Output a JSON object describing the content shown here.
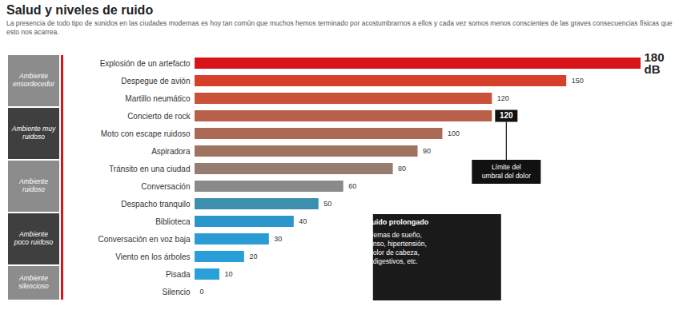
{
  "chart_data": {
    "type": "bar",
    "orientation": "horizontal",
    "title": "Salud y niveles de ruido",
    "subtitle": "La presencia de todo tipo de sonidos en las ciudades modernas es hoy tan común que muchos hemos terminado por acostumbrarnos a ellos y cada vez somos menos conscientes de las graves consecuencias físicas que esto nos acarrea.",
    "categories": [
      "Explosión de un artefacto",
      "Despegue de avión",
      "Martillo neumático",
      "Concierto de rock",
      "Moto con escape ruidoso",
      "Aspiradora",
      "Tránsito en una ciudad",
      "Conversación",
      "Despacho tranquilo",
      "Biblioteca",
      "Conversación en voz baja",
      "Viento en los árboles",
      "Pisada",
      "Silencio"
    ],
    "values": [
      180,
      150,
      120,
      120,
      100,
      90,
      80,
      60,
      50,
      40,
      30,
      20,
      10,
      0
    ],
    "value_labels": [
      "180 dB",
      "150",
      "120",
      "120",
      "100",
      "90",
      "80",
      "60",
      "50",
      "40",
      "30",
      "20",
      "10",
      "0"
    ],
    "colors": [
      "#d7141a",
      "#d6402b",
      "#c95238",
      "#b8604a",
      "#ab6a56",
      "#a07260",
      "#957b70",
      "#8a8a8a",
      "#3d8fb0",
      "#2b96c9",
      "#2a9bd3",
      "#2a9ed8",
      "#2aa0db",
      "#2aa0db"
    ],
    "xlim": [
      0,
      180
    ],
    "tick_labels": "y",
    "data_labels": true,
    "grid": false,
    "groups": [
      {
        "name": "Ambiente ensordecedor",
        "categories": [
          "Explosión de un artefacto",
          "Despegue de avión",
          "Martillo neumático"
        ]
      },
      {
        "name": "Ambiente muy ruidoso",
        "categories": [
          "Concierto de rock",
          "Moto con escape ruidoso",
          "Aspiradora"
        ]
      },
      {
        "name": "Ambiente ruidoso",
        "categories": [
          "Tránsito en una ciudad",
          "Conversación",
          "Despacho tranquilo"
        ]
      },
      {
        "name": "Ambiente poco ruidoso",
        "categories": [
          "Biblioteca",
          "Conversación en voz baja",
          "Viento en los árboles"
        ]
      },
      {
        "name": "Ambiente silencioso",
        "categories": [
          "Pisada",
          "Silencio"
        ]
      }
    ],
    "annotations": [
      {
        "category": "Concierto de rock",
        "text": "Límite del umbral del dolor"
      }
    ],
    "note": {
      "title": "Efectos del ruido prolongado",
      "text": "Estrés, problemas de sueño, falta de descanso, hipertensión, ansiedad, dolor de cabeza, problemas digestivos, etc."
    }
  }
}
